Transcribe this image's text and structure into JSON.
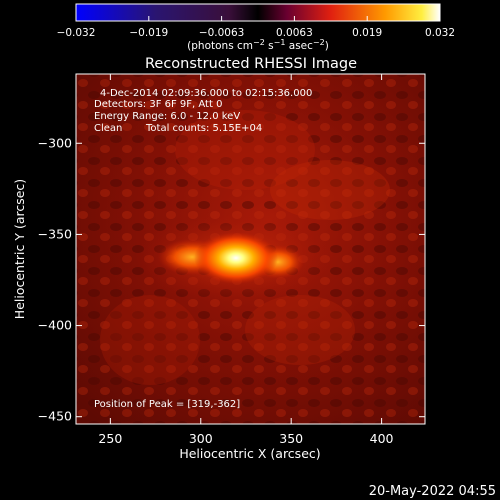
{
  "colorbar": {
    "ticks": [
      "−0.032",
      "−0.019",
      "−0.0063",
      "0.0063",
      "0.019",
      "0.032"
    ],
    "units_main": "(photons cm",
    "units_exp1": "−2",
    "units_mid": " s",
    "units_exp2": "−1",
    "units_end": " asec",
    "units_exp3": "−2",
    "units_close": ")"
  },
  "title": "Reconstructed RHESSI Image",
  "annotations": {
    "time_range": "4-Dec-2014 02:09:36.000 to 02:15:36.000",
    "detectors": "Detectors: 3F 6F 9F, Att 0",
    "energy": "Energy Range: 6.0 - 12.0 keV",
    "method": "Clean",
    "counts": "Total counts: 5.15E+04",
    "peak": "Position of Peak = [319,-362]"
  },
  "timestamp": "20-May-2022 04:55",
  "chart_data": {
    "type": "heatmap",
    "title": "Reconstructed RHESSI Image",
    "xlabel": "Heliocentric X (arcsec)",
    "ylabel": "Heliocentric Y (arcsec)",
    "xlim": [
      231,
      424
    ],
    "ylim": [
      -454,
      -262
    ],
    "xticks": [
      250,
      300,
      350,
      400
    ],
    "yticks": [
      -300,
      -350,
      -400,
      -450
    ],
    "colorbar_range": [
      -0.032,
      0.032
    ],
    "colormap": "hot (black-red-yellow-white), blue for negative",
    "peak_position": [
      319,
      -362
    ],
    "sources": [
      {
        "x": 319,
        "y": -362,
        "relative_intensity": 1.0
      },
      {
        "x": 340,
        "y": -362,
        "relative_intensity": 0.65
      },
      {
        "x": 295,
        "y": -360,
        "relative_intensity": 0.55
      }
    ]
  },
  "colors": {
    "background": "#000000",
    "text": "#ffffff"
  }
}
